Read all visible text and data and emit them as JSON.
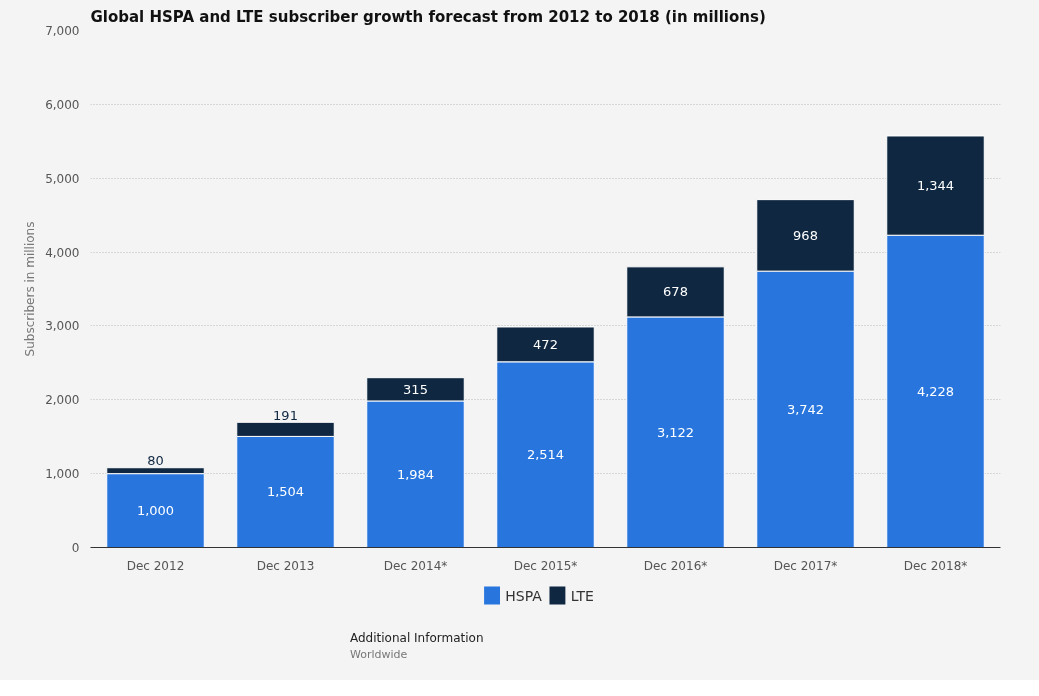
{
  "chart_data": {
    "type": "bar",
    "stacked": true,
    "title": "Global HSPA and LTE subscriber growth forecast from 2012 to 2018 (in millions)",
    "ylabel": "Subscribers in millions",
    "categories": [
      "Dec 2012",
      "Dec 2013",
      "Dec 2014*",
      "Dec 2015*",
      "Dec 2016*",
      "Dec 2017*",
      "Dec 2018*"
    ],
    "series": [
      {
        "name": "HSPA",
        "color": "#2876dd",
        "values": [
          1000,
          1504,
          1984,
          2514,
          3122,
          3742,
          4228
        ],
        "value_labels": [
          "1,000",
          "1,504",
          "1,984",
          "2,514",
          "3,122",
          "3,742",
          "4,228"
        ]
      },
      {
        "name": "LTE",
        "color": "#0f2741",
        "values": [
          80,
          191,
          315,
          472,
          678,
          968,
          1344
        ],
        "value_labels": [
          "80",
          "191",
          "315",
          "472",
          "678",
          "968",
          "1,344"
        ]
      }
    ],
    "ylim": [
      0,
      7000
    ],
    "yticks": [
      {
        "value": 0,
        "label": "0"
      },
      {
        "value": 1000,
        "label": "1,000"
      },
      {
        "value": 2000,
        "label": "2,000"
      },
      {
        "value": 3000,
        "label": "3,000"
      },
      {
        "value": 4000,
        "label": "4,000"
      },
      {
        "value": 5000,
        "label": "5,000"
      },
      {
        "value": 6000,
        "label": "6,000"
      },
      {
        "value": 7000,
        "label": "7,000"
      }
    ],
    "grid": "y",
    "legend": "bottom",
    "annotations": [
      "Additional Information",
      "Worldwide"
    ]
  }
}
